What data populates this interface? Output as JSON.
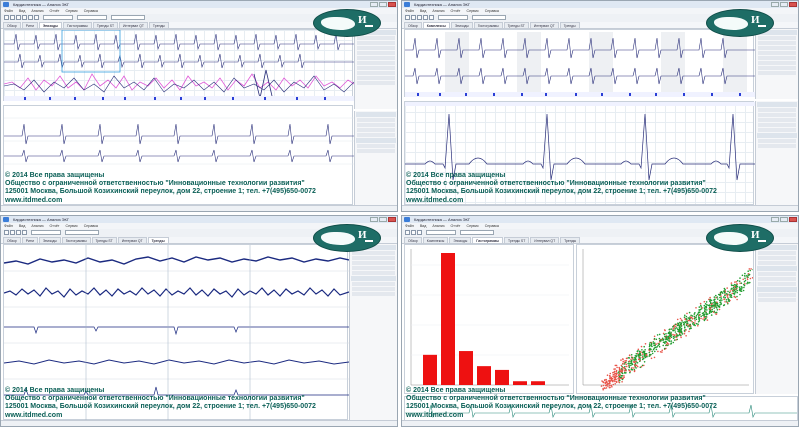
{
  "watermark": {
    "copyright": "© 2014 Все права защищены",
    "company": "Общество с ограниченной ответственностью \"Инновационные технологии развития\"",
    "address": "125001 Москва, Большой Козихинский переулок, дом 22, строение 1; тел. +7(495)650-0072",
    "site_tl": "www.itdmed.com",
    "site_tr": "www.itdmed.com",
    "site_bl": "www.itdmed.com",
    "site_br": "www.itdmed.com"
  },
  "logo": {
    "letter": "И"
  },
  "colors": {
    "logo_bg": "#1e6d66",
    "watermark": "#0a5f56",
    "ecg_trace": "#2a2f7a",
    "marker_blue": "#2b3fd6",
    "marker_magenta": "#e05ad8",
    "histogram_bar": "#ee1111",
    "scatter_green": "#1f9c2e",
    "scatter_red": "#e8554a"
  },
  "windows": [
    {
      "id": "tl",
      "title": "Кардиотехника — Анализ ЭКГ",
      "menu": [
        "Файл",
        "Вид",
        "Анализ",
        "Отчёт",
        "Сервис",
        "Справка"
      ],
      "tabs": [
        "Обзор",
        "Ритм",
        "Эпизоды",
        "Гистограммы",
        "Тренды ST",
        "Интервал QT",
        "Тренды"
      ],
      "active_tab": 2
    },
    {
      "id": "tr",
      "title": "Кардиотехника — Анализ ЭКГ",
      "menu": [
        "Файл",
        "Вид",
        "Анализ",
        "Отчёт",
        "Сервис",
        "Справка"
      ],
      "tabs": [
        "Обзор",
        "Комплексы",
        "Эпизоды",
        "Гистограммы",
        "Тренды ST",
        "Интервал QT",
        "Тренды"
      ],
      "active_tab": 1
    },
    {
      "id": "bl",
      "title": "Кардиотехника — Анализ ЭКГ",
      "menu": [
        "Файл",
        "Вид",
        "Анализ",
        "Отчёт",
        "Сервис",
        "Справка"
      ],
      "tabs": [
        "Обзор",
        "Ритм",
        "Эпизоды",
        "Гистограммы",
        "Тренды ST",
        "Интервал QT",
        "Тренды"
      ],
      "active_tab": 6
    },
    {
      "id": "br",
      "title": "Кардиотехника — Анализ ЭКГ",
      "menu": [
        "Файл",
        "Вид",
        "Анализ",
        "Отчёт",
        "Сервис",
        "Справка"
      ],
      "tabs": [
        "Обзор",
        "Комплексы",
        "Эпизоды",
        "Гистограммы",
        "Тренды ST",
        "Интервал QT",
        "Тренды"
      ],
      "active_tab": 3
    }
  ],
  "histogram": {
    "values": [
      8,
      35,
      9,
      5,
      4,
      1,
      1
    ]
  }
}
